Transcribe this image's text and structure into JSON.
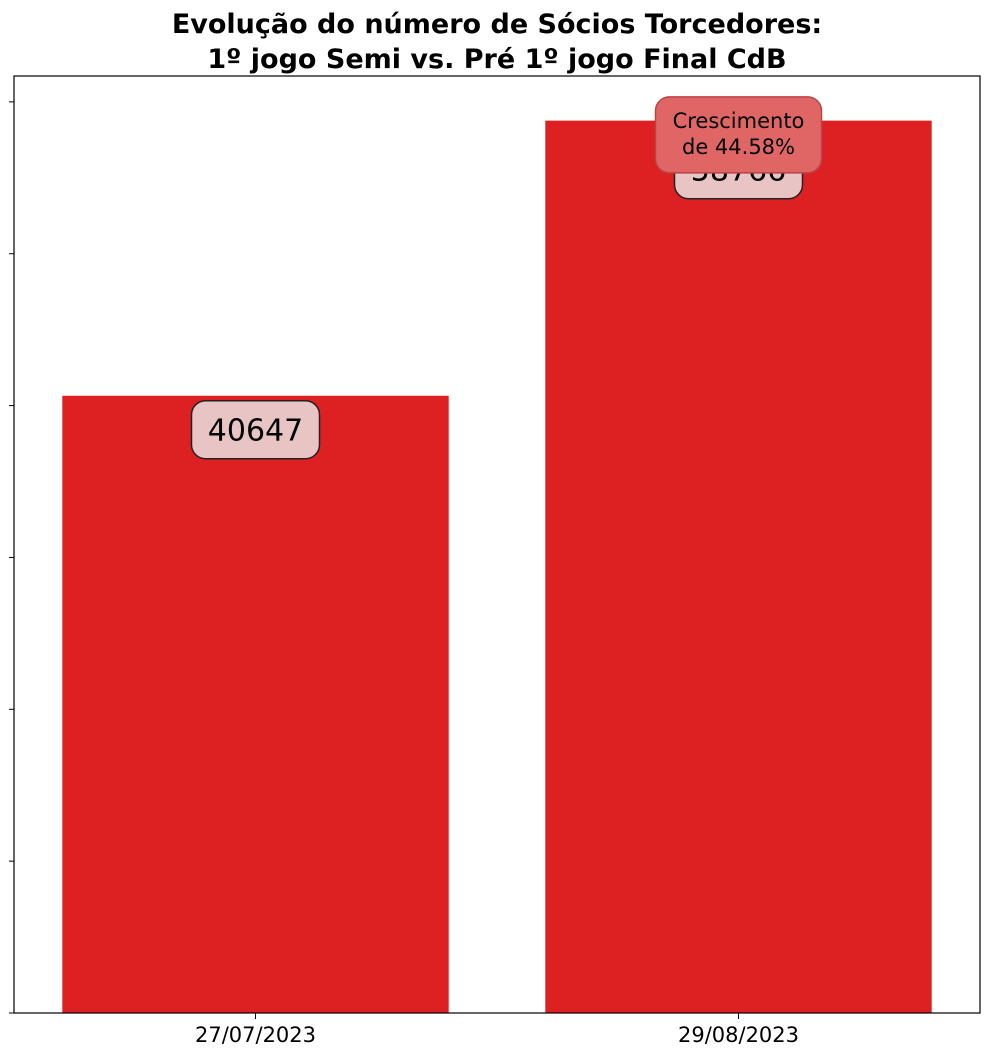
{
  "chart_data": {
    "type": "bar",
    "title": "Evolução do número de Sócios Torcedores:",
    "subtitle": "1º jogo Semi vs. Pré 1º jogo Final CdB",
    "xlabel": "",
    "ylabel": "",
    "categories": [
      "27/07/2023",
      "29/08/2023"
    ],
    "values": [
      40647,
      58766
    ],
    "value_labels": [
      "40647",
      "58766"
    ],
    "ylim": [
      0,
      61705
    ],
    "y_ticks": [
      0,
      10000,
      20000,
      30000,
      40000,
      50000,
      60000
    ],
    "y_tick_labels_visible": false,
    "grid": false,
    "legend": "none",
    "annotation": {
      "line1": "Crescimento",
      "line2": "de 44.58%",
      "category": "29/08/2023"
    },
    "colors": {
      "bar": "#dd2022",
      "value_box": "#e8c4c4",
      "annotation_box": "#e06666",
      "annotation_border": "#b94444"
    }
  }
}
